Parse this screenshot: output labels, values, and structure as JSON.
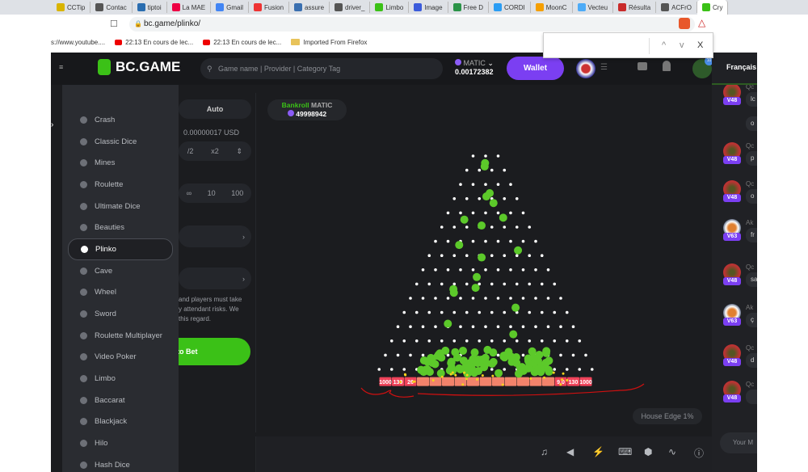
{
  "browser": {
    "tabs": [
      {
        "label": "CCTip"
      },
      {
        "label": "Contac"
      },
      {
        "label": "tiptoi"
      },
      {
        "label": "La MAE"
      },
      {
        "label": "Gmail"
      },
      {
        "label": "Fusion"
      },
      {
        "label": "assure"
      },
      {
        "label": "driver_"
      },
      {
        "label": "Limbo"
      },
      {
        "label": "Image"
      },
      {
        "label": "Free D"
      },
      {
        "label": "CORDI"
      },
      {
        "label": "MoonC"
      },
      {
        "label": "Vecteu"
      },
      {
        "label": "Résulta"
      },
      {
        "label": "ACFrO"
      },
      {
        "label": "Cry"
      }
    ],
    "url": "bc.game/plinko/",
    "bookmarks": [
      "s://www.youtube....",
      "22:13  En cours de lec...",
      "22:13  En cours de lec...",
      "Imported From Firefox"
    ],
    "find_bar": {
      "up": "^",
      "down": "v",
      "close": "X"
    }
  },
  "header": {
    "logo": "BC.GAME",
    "search_placeholder": "Game name | Provider | Category Tag",
    "currency": "MATIC",
    "balance": "0.00172382",
    "wallet_label": "Wallet",
    "notification_badge": "10",
    "language": "Français"
  },
  "menu": {
    "items": [
      {
        "label": "Crash"
      },
      {
        "label": "Classic Dice"
      },
      {
        "label": "Mines"
      },
      {
        "label": "Roulette"
      },
      {
        "label": "Ultimate Dice"
      },
      {
        "label": "Beauties"
      },
      {
        "label": "Plinko",
        "selected": true
      },
      {
        "label": "Cave"
      },
      {
        "label": "Wheel"
      },
      {
        "label": "Sword"
      },
      {
        "label": "Roulette Multiplayer"
      },
      {
        "label": "Video Poker"
      },
      {
        "label": "Limbo"
      },
      {
        "label": "Baccarat"
      },
      {
        "label": "Blackjack"
      },
      {
        "label": "Hilo"
      },
      {
        "label": "Hash Dice"
      }
    ]
  },
  "bet_panel": {
    "auto_tab": "Auto",
    "usd_value": "0.00000017 USD",
    "half": "/2",
    "double": "x2",
    "count_options": [
      "∞",
      "10",
      "100"
    ],
    "disclaimer": [
      "and players must take",
      "y attendant risks. We",
      "this regard."
    ],
    "bet_button": "to Bet"
  },
  "game": {
    "bankroll_label": "Bankroll",
    "bankroll_currency": "MATIC",
    "bankroll_value": "49998942",
    "house_edge": "House Edge 1%",
    "multipliers_left": [
      "1000",
      "130",
      "26"
    ],
    "multipliers_right": [
      "9.0",
      "130",
      "1000"
    ],
    "colors": {
      "ball": "#5cc92a",
      "peg": "#ffffff",
      "slot": "#f0435a",
      "accent": "#3bc117"
    }
  },
  "toolbar": {
    "icons": [
      "music-icon",
      "sound-icon",
      "lightning-icon",
      "keyboard-icon",
      "acorn-icon",
      "graph-icon",
      "help-icon"
    ]
  },
  "chat": {
    "messages": [
      {
        "user": "Qc",
        "level": "V48",
        "text": "lc"
      },
      {
        "user": "",
        "level": "",
        "text": "o"
      },
      {
        "user": "Qc",
        "level": "V48",
        "text": "p"
      },
      {
        "user": "Qc",
        "level": "V48",
        "text": "o"
      },
      {
        "user": "Ak",
        "level": "V63",
        "text": "fr"
      },
      {
        "user": "Qc",
        "level": "V48",
        "text": "sa"
      },
      {
        "user": "Ak",
        "level": "V63",
        "text": "ç"
      },
      {
        "user": "Qc",
        "level": "V48",
        "text": "d"
      },
      {
        "user": "Qc",
        "level": "V48",
        "text": ""
      }
    ],
    "input_placeholder": "Your M"
  }
}
